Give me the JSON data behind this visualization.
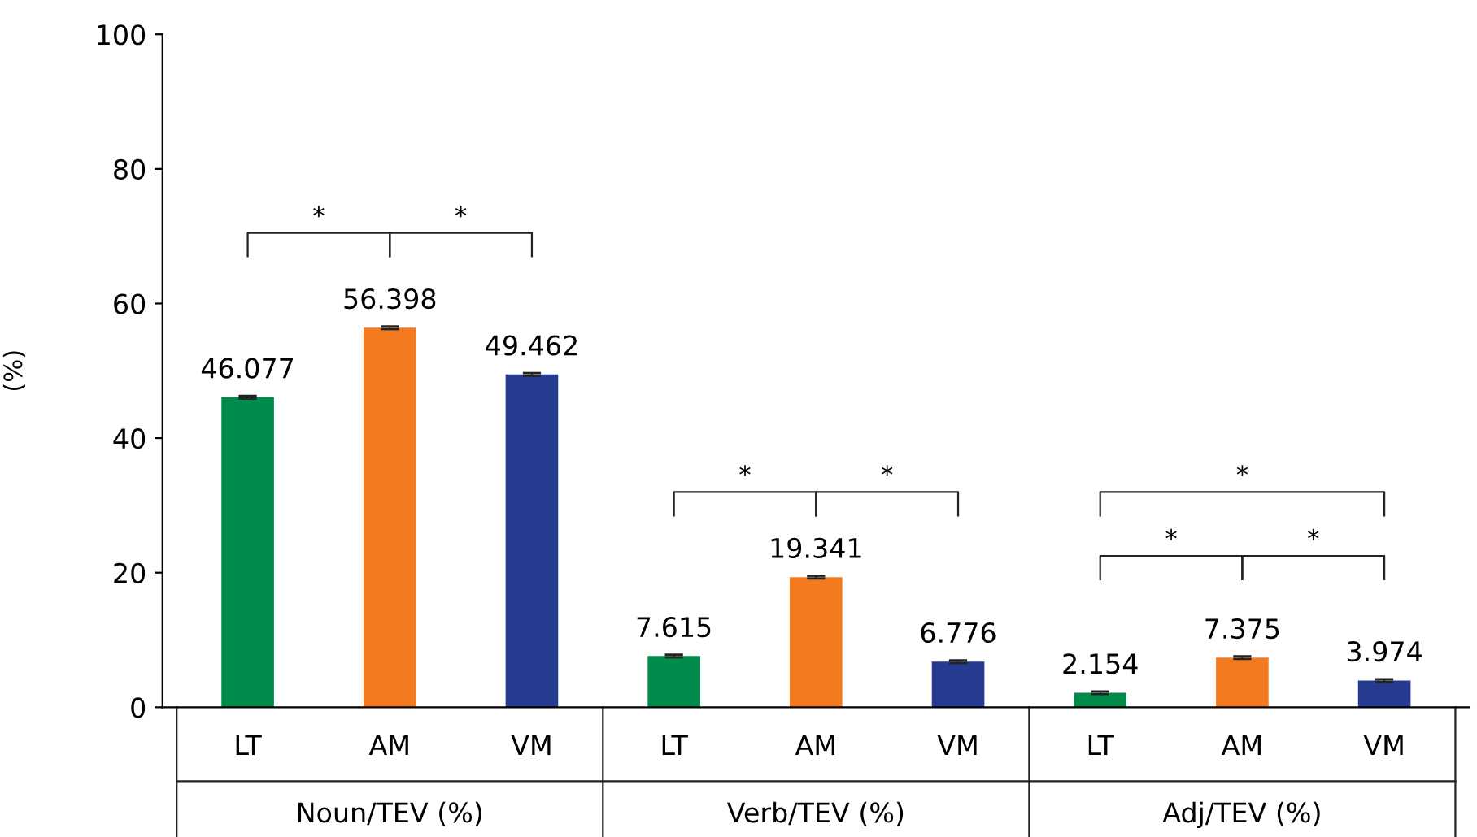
{
  "chart_data": {
    "type": "bar",
    "categories": [
      "LT",
      "AM",
      "VM",
      "LT",
      "AM",
      "VM",
      "LT",
      "AM",
      "VM"
    ],
    "values": [
      46.077,
      56.398,
      49.462,
      7.615,
      19.341,
      6.776,
      2.154,
      7.375,
      3.974
    ],
    "colors": [
      "#008b4a",
      "#f47a20",
      "#253b8f",
      "#008b4a",
      "#f47a20",
      "#253b8f",
      "#008b4a",
      "#f47a20",
      "#253b8f"
    ],
    "errors": [
      0.2,
      0.2,
      0.2,
      0.2,
      0.2,
      0.2,
      0.2,
      0.2,
      0.2
    ],
    "data_labels": true,
    "ylabel": "(%)",
    "ylim": [
      0,
      100
    ],
    "yticks": [
      0,
      20,
      40,
      60,
      80,
      100
    ],
    "annotations": [
      "Noun/TEV (%)",
      "Verb/TEV (%)",
      "Adj/TEV (%)",
      "*",
      "*",
      "*",
      "*",
      "*",
      "*",
      "*"
    ]
  }
}
